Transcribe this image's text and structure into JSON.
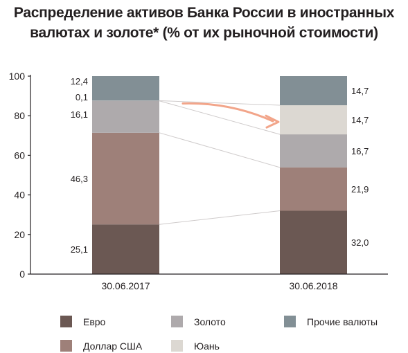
{
  "title": {
    "line1": "Распределение активов Банка России в иностранных",
    "line2": "валютах и золоте* (% от их рыночной стоимости)"
  },
  "chart_data": {
    "type": "bar",
    "stacked": true,
    "categories": [
      "30.06.2017",
      "30.06.2018"
    ],
    "series": [
      {
        "name": "Евро",
        "values": [
          25.1,
          32.0
        ],
        "labels": [
          "25,1",
          "32,0"
        ],
        "color": "#6b5853"
      },
      {
        "name": "Доллар США",
        "values": [
          46.3,
          21.9
        ],
        "labels": [
          "46,3",
          "21,9"
        ],
        "color": "#9e8079"
      },
      {
        "name": "Золото",
        "values": [
          16.1,
          16.7
        ],
        "labels": [
          "16,1",
          "16,7"
        ],
        "color": "#aeaaac"
      },
      {
        "name": "Юань",
        "values": [
          0.1,
          14.7
        ],
        "labels": [
          "0,1",
          "14,7"
        ],
        "color": "#dcd8d2"
      },
      {
        "name": "Прочие валюты",
        "values": [
          12.4,
          14.7
        ],
        "labels": [
          "12,4",
          "14,7"
        ],
        "color": "#828f95"
      }
    ],
    "yticks": [
      "0",
      "20",
      "40",
      "60",
      "80",
      "100"
    ],
    "ylim": [
      0,
      100
    ],
    "legend_position": "bottom",
    "grid": false,
    "arrow_color": "#f2a58a",
    "connector_color": "#cfcbcb"
  },
  "legend": {
    "row1": [
      "Евро",
      "Золото",
      "Прочие валюты"
    ],
    "row2": [
      "Доллар США",
      "Юань"
    ]
  }
}
